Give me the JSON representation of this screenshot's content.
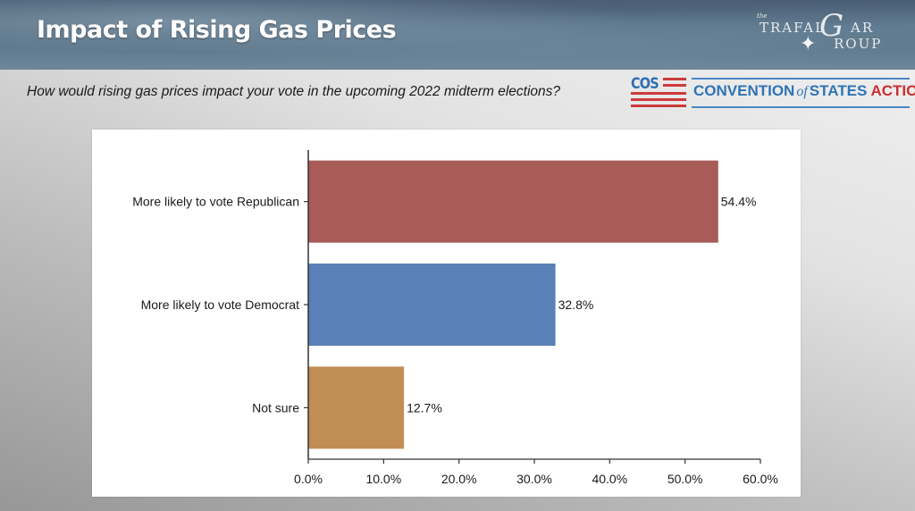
{
  "header": {
    "title": "Impact of Rising Gas Prices",
    "logo": {
      "the": "the",
      "word1": "TRAFAL",
      "big_letter": "G",
      "word2": "AR",
      "word3": "ROUP",
      "icon": "compass-star-icon"
    }
  },
  "question": "How would rising gas prices impact your vote in the upcoming 2022 midterm elections?",
  "sponsor": {
    "abbr": "COS",
    "name_part1": "CONVENTION",
    "name_of": "of",
    "name_part2": "STATES",
    "name_part3": "ACTION",
    "colors": {
      "blue": "#2f74b5",
      "red": "#cc2f2f"
    }
  },
  "chart_data": {
    "type": "bar",
    "orientation": "horizontal",
    "title": "",
    "xlabel": "",
    "ylabel": "",
    "categories": [
      "More likely to vote Republican",
      "More likely to vote Democrat",
      "Not sure"
    ],
    "values": [
      54.4,
      32.8,
      12.7
    ],
    "value_labels": [
      "54.4%",
      "32.8%",
      "12.7%"
    ],
    "colors": [
      "#a95b58",
      "#5a80b8",
      "#c08e55"
    ],
    "xlim": [
      0,
      60
    ],
    "xticks": [
      0,
      10,
      20,
      30,
      40,
      50,
      60
    ],
    "xtick_labels": [
      "0.0%",
      "10.0%",
      "20.0%",
      "30.0%",
      "40.0%",
      "50.0%",
      "60.0%"
    ],
    "grid": false,
    "legend": "none"
  }
}
